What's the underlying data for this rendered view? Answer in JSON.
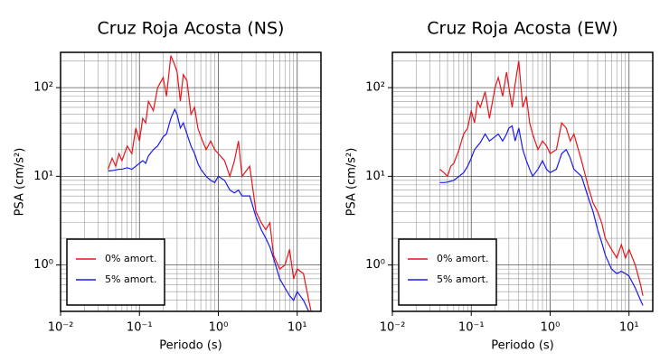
{
  "chart_data": [
    {
      "type": "line",
      "title": "Cruz Roja Acosta (NS)",
      "xlabel": "Periodo (s)",
      "ylabel": "PSA (cm/s²)",
      "log_x": true,
      "log_y": true,
      "grid": true,
      "legend": "lower left",
      "xlim": [
        0.01,
        20
      ],
      "ylim": [
        0.3,
        250
      ],
      "xticks": [
        {
          "value": 0.01,
          "label": "10⁻²"
        },
        {
          "value": 0.1,
          "label": "10⁻¹"
        },
        {
          "value": 1,
          "label": "10⁰"
        },
        {
          "value": 10,
          "label": "10¹"
        }
      ],
      "yticks": [
        {
          "value": 1,
          "label": "10⁰"
        },
        {
          "value": 10,
          "label": "10¹"
        },
        {
          "value": 100,
          "label": "10²"
        }
      ],
      "x": [
        0.04,
        0.045,
        0.05,
        0.055,
        0.06,
        0.07,
        0.08,
        0.09,
        0.1,
        0.11,
        0.12,
        0.13,
        0.15,
        0.17,
        0.2,
        0.22,
        0.25,
        0.28,
        0.3,
        0.33,
        0.36,
        0.4,
        0.45,
        0.5,
        0.55,
        0.6,
        0.7,
        0.8,
        0.9,
        1.0,
        1.2,
        1.4,
        1.6,
        1.8,
        2.0,
        2.5,
        3.0,
        3.5,
        4.0,
        4.5,
        5.0,
        6.0,
        7.0,
        8.0,
        9.0,
        10,
        12,
        14,
        15
      ],
      "series": [
        {
          "name": "0% amort.",
          "color": "#e8141a",
          "values": [
            12,
            16,
            13,
            18,
            15,
            22,
            18,
            35,
            25,
            45,
            40,
            70,
            55,
            100,
            130,
            80,
            230,
            180,
            150,
            70,
            140,
            120,
            50,
            60,
            35,
            28,
            20,
            25,
            20,
            18,
            15,
            10,
            15,
            25,
            10,
            13,
            4,
            3,
            2.5,
            3,
            1.3,
            0.9,
            1.0,
            1.5,
            0.7,
            0.9,
            0.8,
            0.4,
            0.3
          ]
        },
        {
          "name": "5% amort.",
          "color": "#1a1aee",
          "values": [
            11.5,
            11.6,
            11.8,
            12,
            12,
            12.5,
            12,
            13,
            14,
            15,
            14,
            17,
            20,
            22,
            28,
            30,
            45,
            57,
            50,
            35,
            40,
            30,
            22,
            18,
            14,
            12,
            10,
            9,
            8.5,
            10,
            9,
            7,
            6.5,
            7,
            6,
            6,
            3.5,
            2.5,
            2,
            1.6,
            1.2,
            0.7,
            0.55,
            0.45,
            0.4,
            0.5,
            0.4,
            0.3,
            0.28
          ]
        }
      ]
    },
    {
      "type": "line",
      "title": "Cruz Roja Acosta (EW)",
      "xlabel": "Periodo (s)",
      "ylabel": "PSA (cm/s²)",
      "log_x": true,
      "log_y": true,
      "grid": true,
      "legend": "lower left",
      "xlim": [
        0.01,
        20
      ],
      "ylim": [
        0.3,
        250
      ],
      "xticks": [
        {
          "value": 0.01,
          "label": "10⁻²"
        },
        {
          "value": 0.1,
          "label": "10⁻¹"
        },
        {
          "value": 1,
          "label": "10⁰"
        },
        {
          "value": 10,
          "label": "10¹"
        }
      ],
      "yticks": [
        {
          "value": 1,
          "label": "10⁰"
        },
        {
          "value": 10,
          "label": "10¹"
        },
        {
          "value": 100,
          "label": "10²"
        }
      ],
      "x": [
        0.04,
        0.045,
        0.05,
        0.055,
        0.06,
        0.07,
        0.08,
        0.09,
        0.1,
        0.11,
        0.12,
        0.13,
        0.15,
        0.17,
        0.2,
        0.22,
        0.25,
        0.28,
        0.3,
        0.33,
        0.36,
        0.4,
        0.45,
        0.5,
        0.55,
        0.6,
        0.7,
        0.8,
        0.9,
        1.0,
        1.2,
        1.4,
        1.6,
        1.8,
        2.0,
        2.5,
        3.0,
        3.5,
        4.0,
        4.5,
        5.0,
        6.0,
        7.0,
        8.0,
        9.0,
        10,
        12,
        14,
        15
      ],
      "series": [
        {
          "name": "0% amort.",
          "color": "#e8141a",
          "values": [
            12,
            11,
            10,
            13,
            14,
            20,
            30,
            35,
            55,
            40,
            70,
            60,
            90,
            45,
            100,
            130,
            80,
            150,
            100,
            60,
            110,
            200,
            60,
            80,
            40,
            30,
            20,
            25,
            22,
            18,
            20,
            40,
            35,
            25,
            30,
            15,
            8,
            5,
            4,
            3,
            2,
            1.5,
            1.2,
            1.7,
            1.2,
            1.5,
            1.0,
            0.6,
            0.45
          ]
        },
        {
          "name": "5% amort.",
          "color": "#1a1aee",
          "values": [
            8.5,
            8.5,
            8.6,
            8.8,
            9,
            10,
            11,
            13,
            16,
            20,
            22,
            24,
            30,
            25,
            28,
            30,
            25,
            30,
            35,
            37,
            25,
            35,
            20,
            15,
            12,
            10,
            12,
            15,
            12,
            11,
            12,
            18,
            20,
            16,
            12,
            10,
            6,
            4,
            2.5,
            1.8,
            1.3,
            0.9,
            0.8,
            0.85,
            0.8,
            0.75,
            0.55,
            0.4,
            0.35
          ]
        }
      ]
    }
  ]
}
